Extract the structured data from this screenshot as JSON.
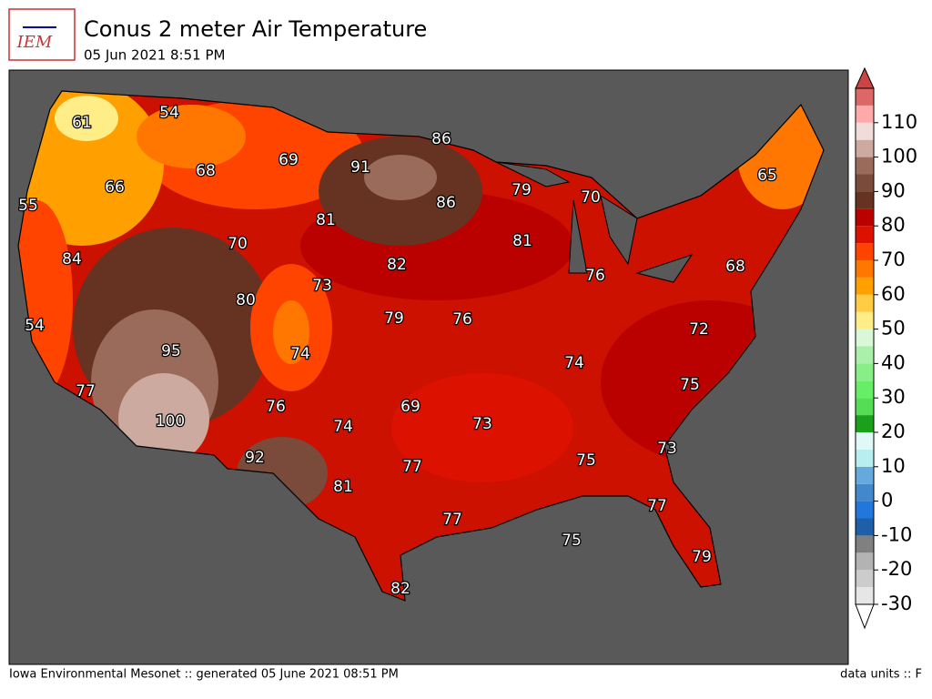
{
  "header": {
    "logo": "IEM",
    "title": "Conus 2 meter Air Temperature",
    "subtitle": "05 Jun 2021 8:51 PM"
  },
  "contour_labels": [
    61,
    54,
    68,
    69,
    91,
    86,
    55,
    66,
    81,
    86,
    79,
    70,
    70,
    84,
    81,
    82,
    80,
    73,
    76,
    54,
    79,
    76,
    68,
    72,
    65,
    74,
    95,
    74,
    77,
    76,
    69,
    75,
    100,
    73,
    74,
    92,
    75,
    73,
    77,
    81,
    77,
    77,
    75,
    79,
    82
  ],
  "colorbar": {
    "lim": [
      -30,
      120
    ],
    "ticks": [
      -30,
      -20,
      -10,
      0,
      10,
      20,
      30,
      40,
      50,
      60,
      70,
      80,
      90,
      100,
      110
    ],
    "colors": [
      "#e6e6e6",
      "#cccccc",
      "#b3b3b3",
      "#808080",
      "#1f5faa",
      "#2277dd",
      "#4488cc",
      "#66aadd",
      "#b8eef0",
      "#e0f8f8",
      "#1aa01a",
      "#55dd55",
      "#66ee66",
      "#88ee88",
      "#aaf0aa",
      "#d8f8d8",
      "#ffee88",
      "#ffcc44",
      "#ffa000",
      "#ff7700",
      "#ff4400",
      "#dd1100",
      "#bb0000",
      "#663322",
      "#7a4a3a",
      "#9a6a5a",
      "#ccaaa0",
      "#f0dcd8",
      "#ffaaaa",
      "#dd6666"
    ],
    "over_color": "#cc4444",
    "under_color": "#ffffff"
  },
  "footer": {
    "left": "Iowa Environmental Mesonet :: generated 05 June 2021 08:51 PM",
    "right": "data units :: F"
  }
}
